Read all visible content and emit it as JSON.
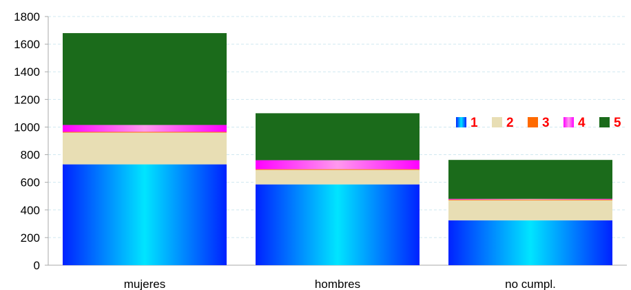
{
  "chart_data": {
    "type": "bar",
    "stacked": true,
    "categories": [
      "mujeres",
      "hombres",
      "no cumpl."
    ],
    "series": [
      {
        "name": "1",
        "values": [
          730,
          585,
          325
        ],
        "color": "#00e5ff",
        "edge_color": "#0022ff"
      },
      {
        "name": "2",
        "values": [
          230,
          105,
          145
        ],
        "color": "#e8deb4"
      },
      {
        "name": "3",
        "values": [
          5,
          5,
          5
        ],
        "color": "#ff6a00"
      },
      {
        "name": "4",
        "values": [
          50,
          65,
          5
        ],
        "color": "#ff99ee",
        "edge_color": "#ff00ff"
      },
      {
        "name": "5",
        "values": [
          665,
          340,
          282
        ],
        "color": "#1b6b1b"
      }
    ],
    "y_ticks": [
      "0",
      "200",
      "400",
      "600",
      "800",
      "1000",
      "1200",
      "1400",
      "1600",
      "1800"
    ],
    "ylim": [
      0,
      1800
    ],
    "grid": true,
    "legend_position": "right",
    "legend_text_color": "#ff0000"
  }
}
